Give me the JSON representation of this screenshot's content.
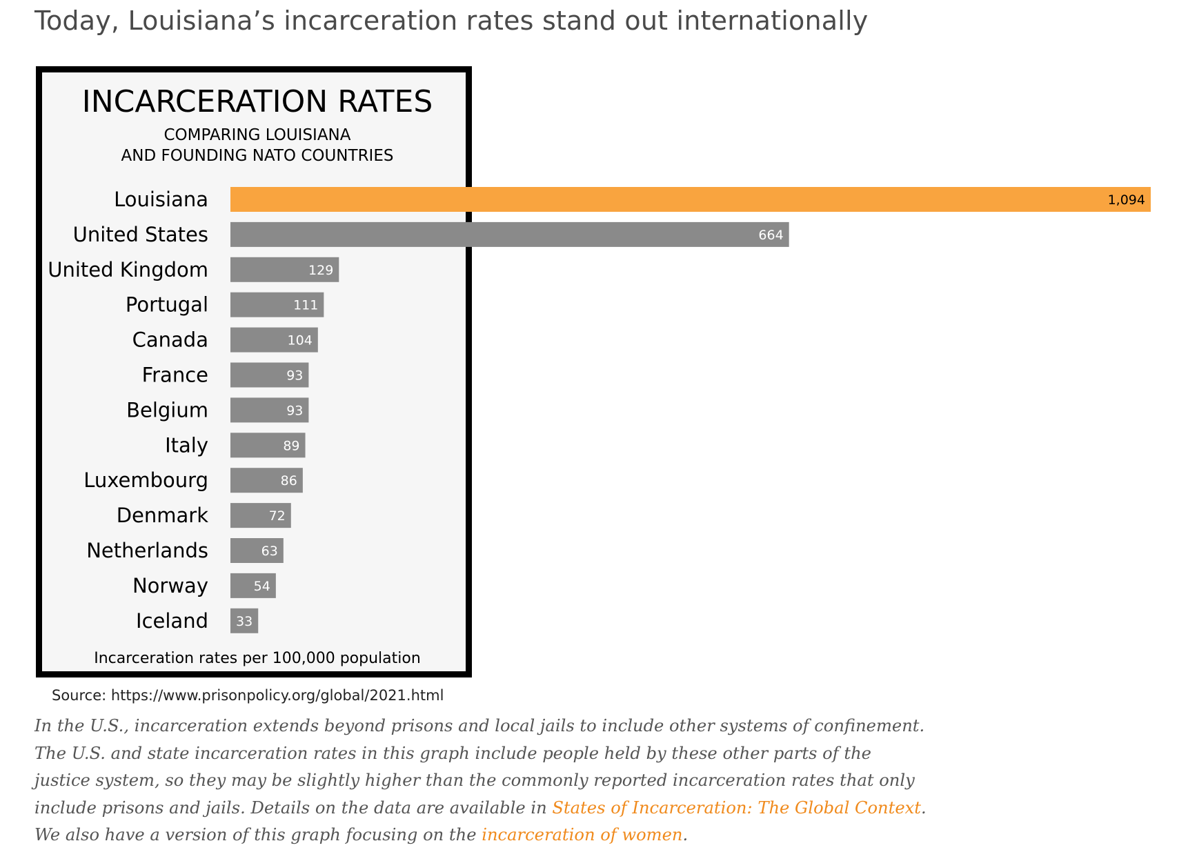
{
  "page": {
    "heading": "Today, Louisiana’s incarceration rates stand out internationally",
    "source": "Source: https://www.prisonpolicy.org/global/2021.html",
    "note": {
      "part1": "In the U.S., incarceration extends beyond prisons and local jails to include other systems of confinement. The U.S. and state incarceration rates in this graph include people held by these other parts of the justice system, so they may be slightly higher than the commonly reported incarceration rates that only include prisons and jails. Details on the data are available in ",
      "link1": "States of Incarceration: The Global Context",
      "part2": ". We also have a version of this graph focusing on the ",
      "link2": "incarceration of women",
      "part3": "."
    }
  },
  "chart_data": {
    "type": "bar",
    "orientation": "horizontal",
    "title": "INCARCERATION RATES",
    "subtitle": [
      "COMPARING LOUISIANA",
      "AND FOUNDING NATO COUNTRIES"
    ],
    "xlabel": "Incarceration rates per 100,000 population",
    "categories": [
      "Louisiana",
      "United States",
      "United Kingdom",
      "Portugal",
      "Canada",
      "France",
      "Belgium",
      "Italy",
      "Luxembourg",
      "Denmark",
      "Netherlands",
      "Norway",
      "Iceland"
    ],
    "values": [
      1094,
      664,
      129,
      111,
      104,
      93,
      93,
      89,
      86,
      72,
      63,
      54,
      33
    ],
    "value_labels": [
      "1,094",
      "664",
      "129",
      "111",
      "104",
      "93",
      "93",
      "89",
      "86",
      "72",
      "63",
      "54",
      "33"
    ],
    "highlight": "Louisiana",
    "colors": {
      "highlight": "#f9a43f",
      "default": "#8a8a8a",
      "highlight_label": "#000000",
      "default_label": "#ffffff"
    },
    "xlim": [
      0,
      1094
    ],
    "grid": false,
    "legend": "none"
  }
}
